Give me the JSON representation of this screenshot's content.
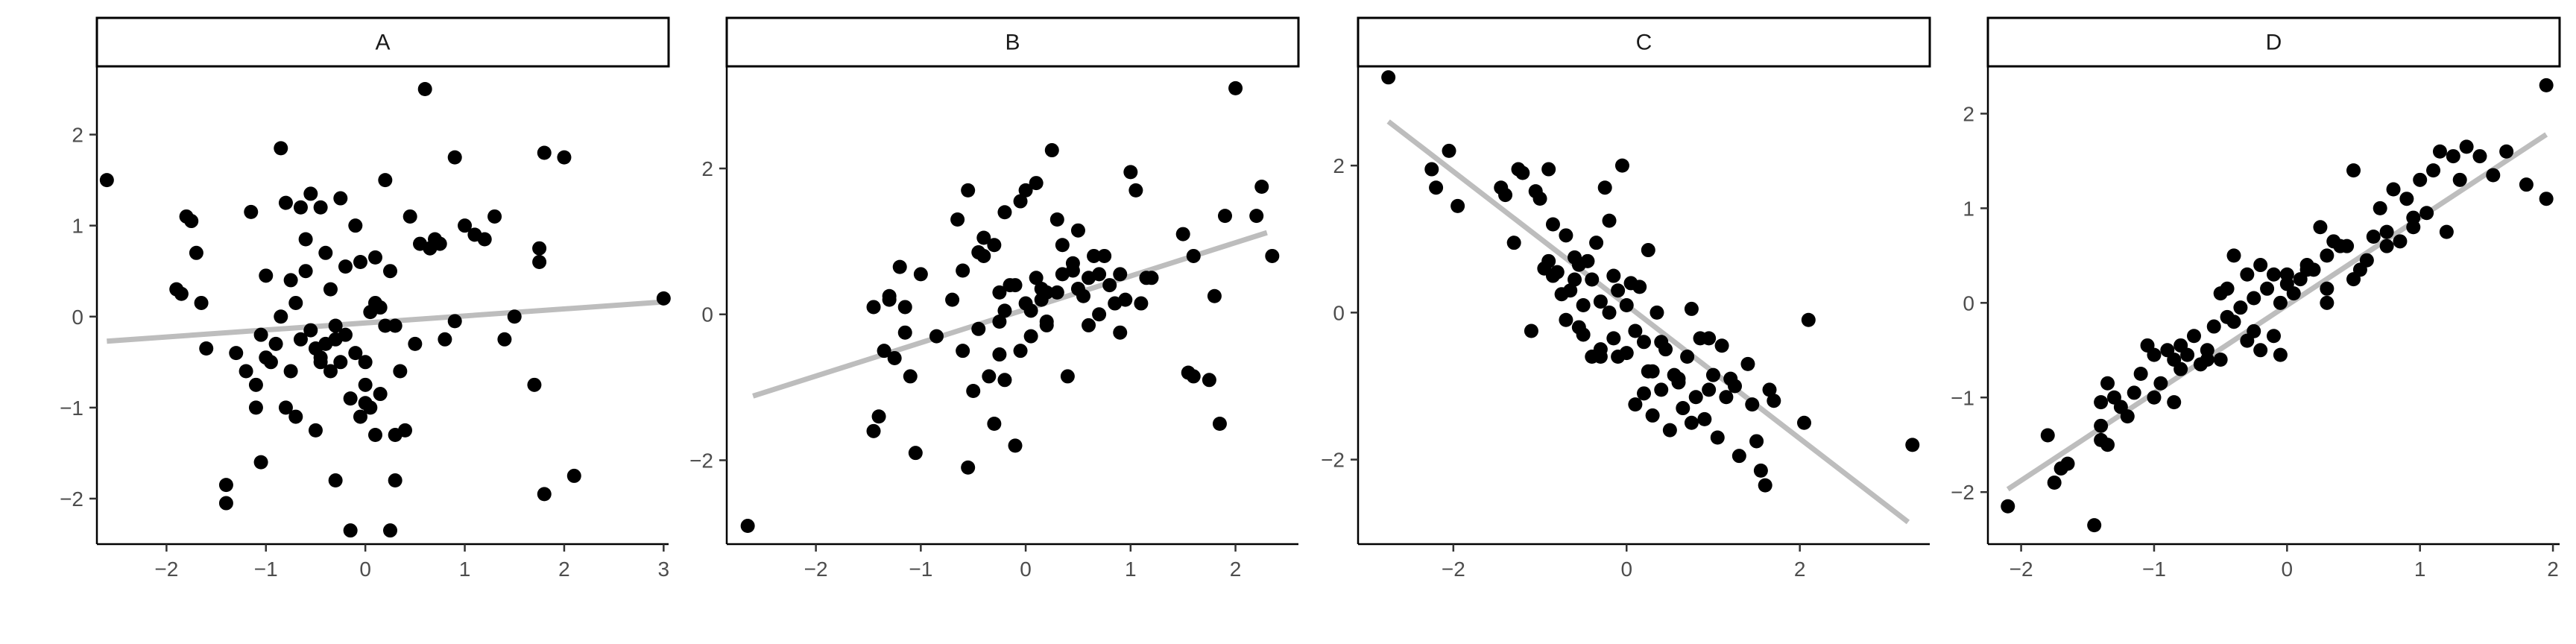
{
  "chart_data": [
    {
      "type": "scatter",
      "panel": "A",
      "xlim": [
        -2.7,
        3.05
      ],
      "ylim": [
        -2.5,
        2.75
      ],
      "xticks": [
        -2,
        -1,
        0,
        1,
        2,
        3
      ],
      "yticks": [
        -2,
        -1,
        0,
        1,
        2
      ],
      "fit": {
        "x": [
          -2.6,
          2.98
        ],
        "y": [
          -0.27,
          0.16
        ]
      },
      "x": [
        -2.6,
        -1.9,
        -1.85,
        -1.8,
        -1.75,
        -1.7,
        -1.65,
        -1.6,
        -1.4,
        -1.4,
        -1.3,
        -1.2,
        -1.15,
        -1.1,
        -1.1,
        -1.05,
        -1.05,
        -1.0,
        -1.0,
        -0.95,
        -0.9,
        -0.85,
        -0.85,
        -0.8,
        -0.8,
        -0.75,
        -0.75,
        -0.7,
        -0.7,
        -0.65,
        -0.65,
        -0.6,
        -0.6,
        -0.55,
        -0.55,
        -0.5,
        -0.5,
        -0.45,
        -0.45,
        -0.4,
        -0.4,
        -0.35,
        -0.35,
        -0.3,
        -0.3,
        -0.25,
        -0.25,
        -0.2,
        -0.2,
        -0.15,
        -0.15,
        -0.1,
        -0.1,
        -0.05,
        -0.05,
        0.0,
        0.0,
        0.05,
        0.05,
        0.1,
        0.1,
        0.15,
        0.15,
        0.2,
        0.2,
        0.25,
        0.25,
        0.3,
        0.3,
        0.35,
        0.4,
        0.45,
        0.5,
        0.55,
        0.6,
        0.65,
        0.7,
        0.8,
        0.9,
        1.0,
        1.1,
        1.2,
        1.3,
        1.5,
        1.7,
        1.75,
        1.75,
        1.8,
        2.0,
        2.1,
        3.0,
        1.8,
        0.0,
        0.1,
        -0.3,
        0.3,
        1.4,
        0.75,
        0.9,
        -0.45
      ],
      "y": [
        1.5,
        0.3,
        0.25,
        1.1,
        1.05,
        0.7,
        0.15,
        -0.35,
        -1.85,
        -2.05,
        -0.4,
        -0.6,
        1.15,
        -1.0,
        -0.75,
        -0.2,
        -1.6,
        -0.45,
        0.45,
        -0.5,
        -0.3,
        1.85,
        0.0,
        1.25,
        -1.0,
        0.4,
        -0.6,
        0.15,
        -1.1,
        1.2,
        -0.25,
        0.5,
        0.85,
        1.35,
        -0.15,
        -0.35,
        -1.25,
        -0.45,
        1.2,
        0.7,
        -0.3,
        0.3,
        -0.6,
        -1.8,
        -0.1,
        1.3,
        -0.5,
        0.55,
        -0.2,
        -2.35,
        -0.9,
        1.0,
        -0.4,
        0.6,
        -1.1,
        -0.5,
        -0.75,
        0.05,
        -1.0,
        -1.3,
        0.15,
        0.1,
        -0.85,
        -0.1,
        1.5,
        -2.35,
        0.5,
        -1.3,
        -1.8,
        -0.6,
        -1.25,
        1.1,
        -0.3,
        0.8,
        2.5,
        0.75,
        0.85,
        -0.25,
        1.75,
        1.0,
        0.9,
        0.85,
        1.1,
        0.0,
        -0.75,
        0.6,
        0.75,
        1.8,
        1.75,
        -1.75,
        0.2,
        -1.95,
        -0.95,
        0.65,
        -0.25,
        -0.1,
        -0.25,
        0.8,
        -0.05,
        -0.5
      ]
    },
    {
      "type": "scatter",
      "panel": "B",
      "xlim": [
        -2.85,
        2.6
      ],
      "ylim": [
        -3.15,
        3.4
      ],
      "xticks": [
        -2,
        -1,
        0,
        1,
        2
      ],
      "yticks": [
        -2,
        0,
        2
      ],
      "fit": {
        "x": [
          -2.6,
          2.3
        ],
        "y": [
          -1.12,
          1.12
        ]
      },
      "x": [
        -2.65,
        -1.45,
        -1.4,
        -1.35,
        -1.3,
        -1.3,
        -1.25,
        -1.2,
        -1.15,
        -1.15,
        -1.1,
        -1.05,
        -1.0,
        -0.7,
        -0.65,
        -0.6,
        -0.55,
        -0.55,
        -0.5,
        -0.45,
        -0.4,
        -0.4,
        -0.35,
        -0.3,
        -0.3,
        -0.25,
        -0.25,
        -0.2,
        -0.2,
        -0.15,
        -0.1,
        -0.05,
        -0.05,
        0.0,
        0.0,
        0.05,
        0.1,
        0.1,
        0.15,
        0.2,
        0.2,
        0.25,
        0.3,
        0.3,
        0.35,
        0.4,
        0.45,
        0.5,
        0.5,
        0.55,
        0.6,
        0.65,
        0.7,
        0.75,
        0.8,
        0.85,
        0.9,
        0.95,
        1.0,
        1.05,
        1.1,
        1.15,
        1.2,
        1.5,
        1.55,
        1.6,
        1.75,
        1.8,
        1.85,
        1.9,
        2.0,
        2.2,
        2.25,
        2.35,
        -0.25,
        0.35,
        -0.6,
        0.2,
        0.7,
        -0.1,
        0.6,
        -0.45,
        0.9,
        0.05,
        -0.2,
        1.6,
        0.45,
        0.15,
        -1.45,
        -0.85
      ],
      "y": [
        -2.9,
        -1.6,
        -1.4,
        -0.5,
        0.2,
        0.25,
        -0.6,
        0.65,
        -0.25,
        0.1,
        -0.85,
        -1.9,
        0.55,
        0.2,
        1.3,
        -0.5,
        1.7,
        -2.1,
        -1.05,
        -0.2,
        0.8,
        1.05,
        -0.85,
        0.95,
        -1.5,
        -0.1,
        0.3,
        1.4,
        -0.9,
        0.4,
        -1.8,
        1.55,
        -0.5,
        0.15,
        1.7,
        0.05,
        0.5,
        1.8,
        0.2,
        -0.15,
        0.3,
        2.25,
        1.3,
        0.3,
        0.55,
        -0.85,
        0.7,
        0.35,
        1.15,
        0.25,
        0.5,
        0.8,
        0.55,
        0.8,
        0.4,
        0.15,
        0.55,
        0.2,
        1.95,
        1.7,
        0.15,
        0.5,
        0.5,
        1.1,
        -0.8,
        0.8,
        -0.9,
        0.25,
        -1.5,
        1.35,
        3.1,
        1.35,
        1.75,
        0.8,
        -0.55,
        0.95,
        0.6,
        -0.1,
        0.0,
        0.4,
        -0.15,
        0.85,
        -0.25,
        -0.3,
        0.05,
        -0.85,
        0.6,
        0.35,
        0.1,
        -0.3
      ]
    },
    {
      "type": "scatter",
      "panel": "C",
      "xlim": [
        -3.1,
        3.5
      ],
      "ylim": [
        -3.15,
        3.35
      ],
      "xticks": [
        -2,
        0,
        2
      ],
      "yticks": [
        -2,
        0,
        2
      ],
      "fit": {
        "x": [
          -2.75,
          3.25
        ],
        "y": [
          2.6,
          -2.85
        ]
      },
      "x": [
        -2.75,
        -2.25,
        -2.2,
        -2.05,
        -1.95,
        -1.45,
        -1.4,
        -1.3,
        -1.25,
        -1.2,
        -1.1,
        -1.05,
        -1.0,
        -0.95,
        -0.9,
        -0.85,
        -0.85,
        -0.8,
        -0.75,
        -0.7,
        -0.7,
        -0.65,
        -0.6,
        -0.55,
        -0.5,
        -0.5,
        -0.45,
        -0.4,
        -0.4,
        -0.35,
        -0.3,
        -0.3,
        -0.25,
        -0.2,
        -0.2,
        -0.15,
        -0.1,
        -0.1,
        -0.05,
        0.0,
        0.0,
        0.05,
        0.1,
        0.1,
        0.15,
        0.2,
        0.2,
        0.25,
        0.3,
        0.3,
        0.35,
        0.4,
        0.45,
        0.5,
        0.55,
        0.6,
        0.65,
        0.7,
        0.75,
        0.8,
        0.85,
        0.9,
        0.95,
        1.0,
        1.05,
        1.1,
        1.15,
        1.2,
        1.3,
        1.4,
        1.5,
        1.55,
        1.6,
        1.65,
        1.7,
        2.05,
        2.1,
        3.3,
        -0.3,
        0.4,
        -0.55,
        0.75,
        -0.15,
        0.95,
        1.25,
        -0.9,
        0.25,
        1.45,
        -0.6,
        0.6
      ],
      "y": [
        3.2,
        1.95,
        1.7,
        2.2,
        1.45,
        1.7,
        1.6,
        0.95,
        1.95,
        1.9,
        -0.25,
        1.65,
        1.55,
        0.6,
        1.95,
        1.2,
        0.5,
        0.55,
        0.25,
        -0.1,
        1.05,
        0.3,
        0.75,
        0.65,
        0.1,
        -0.3,
        0.7,
        0.45,
        -0.6,
        0.95,
        0.15,
        -0.5,
        1.7,
        1.25,
        0.0,
        -0.35,
        0.3,
        -0.6,
        2.0,
        0.1,
        -0.55,
        0.4,
        -0.25,
        -1.25,
        0.35,
        -0.4,
        -1.1,
        0.85,
        -0.8,
        -1.4,
        0.0,
        -1.05,
        -0.5,
        -1.6,
        -0.85,
        -0.95,
        -1.3,
        -0.6,
        -1.5,
        -1.15,
        -0.35,
        -1.45,
        -1.05,
        -0.85,
        -1.7,
        -0.45,
        -1.15,
        -0.9,
        -1.95,
        -0.7,
        -1.75,
        -2.15,
        -2.35,
        -1.05,
        -1.2,
        -1.5,
        -0.1,
        -1.8,
        -0.6,
        -0.4,
        -0.2,
        0.05,
        0.5,
        -0.35,
        -1.0,
        0.7,
        -0.8,
        -1.25,
        0.45,
        -0.9
      ]
    },
    {
      "type": "scatter",
      "panel": "D",
      "xlim": [
        -2.25,
        2.05
      ],
      "ylim": [
        -2.55,
        2.5
      ],
      "xticks": [
        -2,
        -1,
        0,
        1,
        2
      ],
      "yticks": [
        -2,
        -1,
        0,
        1,
        2
      ],
      "fit": {
        "x": [
          -2.1,
          1.95
        ],
        "y": [
          -1.97,
          1.78
        ]
      },
      "x": [
        -2.1,
        -1.8,
        -1.75,
        -1.7,
        -1.65,
        -1.45,
        -1.4,
        -1.4,
        -1.35,
        -1.35,
        -1.3,
        -1.2,
        -1.15,
        -1.1,
        -1.05,
        -1.0,
        -1.0,
        -0.95,
        -0.9,
        -0.85,
        -0.8,
        -0.8,
        -0.75,
        -0.7,
        -0.65,
        -0.6,
        -0.55,
        -0.5,
        -0.5,
        -0.45,
        -0.4,
        -0.4,
        -0.35,
        -0.3,
        -0.3,
        -0.25,
        -0.2,
        -0.2,
        -0.15,
        -0.1,
        -0.1,
        -0.05,
        0.0,
        0.0,
        0.05,
        0.1,
        0.15,
        0.2,
        0.25,
        0.3,
        0.3,
        0.35,
        0.4,
        0.45,
        0.5,
        0.55,
        0.6,
        0.65,
        0.7,
        0.75,
        0.8,
        0.85,
        0.9,
        0.95,
        1.0,
        1.05,
        1.1,
        1.15,
        1.2,
        1.25,
        1.3,
        1.35,
        1.45,
        1.55,
        1.65,
        1.8,
        1.95,
        1.95,
        -1.4,
        -0.05,
        0.5,
        -0.85,
        0.3,
        -0.25,
        0.75,
        -1.25,
        -0.6,
        0.95,
        0.15,
        -0.45
      ],
      "y": [
        -2.15,
        -1.4,
        -1.9,
        -1.75,
        -1.7,
        -2.35,
        -1.45,
        -1.05,
        -0.85,
        -1.5,
        -1.0,
        -1.2,
        -0.95,
        -0.75,
        -0.45,
        -1.0,
        -0.55,
        -0.85,
        -0.5,
        -0.6,
        -0.45,
        -0.7,
        -0.55,
        -0.35,
        -0.65,
        -0.5,
        -0.25,
        -0.6,
        0.1,
        0.15,
        -0.2,
        0.5,
        -0.05,
        -0.4,
        0.3,
        0.05,
        0.4,
        -0.5,
        0.15,
        0.3,
        -0.35,
        0.0,
        0.3,
        0.2,
        0.1,
        0.25,
        0.4,
        0.35,
        0.8,
        0.5,
        0.15,
        0.65,
        0.6,
        0.6,
        1.4,
        0.35,
        0.45,
        0.7,
        1.0,
        0.75,
        1.2,
        0.65,
        1.1,
        0.8,
        1.3,
        0.95,
        1.4,
        1.6,
        0.75,
        1.55,
        1.3,
        1.65,
        1.55,
        1.35,
        1.6,
        1.25,
        2.3,
        1.1,
        -1.3,
        -0.55,
        0.25,
        -1.05,
        0.0,
        -0.3,
        0.6,
        -1.1,
        -0.6,
        0.9,
        0.35,
        -0.15
      ]
    }
  ]
}
